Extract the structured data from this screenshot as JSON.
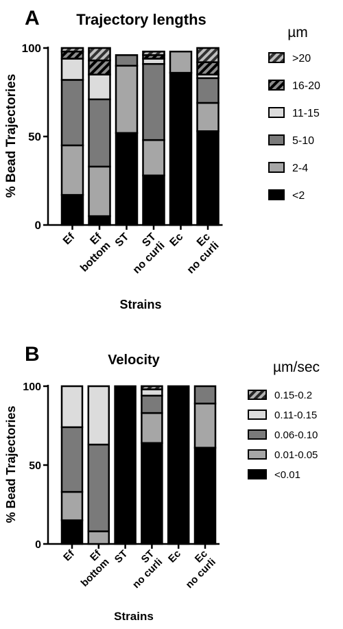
{
  "chart_data": [
    {
      "type": "bar",
      "stacked": true,
      "panel_letter": "A",
      "title": "Trajectory lengths",
      "xlabel": "Strains",
      "ylabel": "% Bead Trajectories",
      "ylim": [
        0,
        100
      ],
      "yticks": [
        0,
        50,
        100
      ],
      "categories": [
        [
          "Ef"
        ],
        [
          "Ef",
          "bottom"
        ],
        [
          "ST"
        ],
        [
          "ST",
          "no curli"
        ],
        [
          "Ec"
        ],
        [
          "Ec",
          "no curli"
        ]
      ],
      "legend_title": "µm",
      "legend_position": "right",
      "series": [
        {
          "name": "<2",
          "color": "#000000",
          "pattern": "solid",
          "values": [
            17,
            5,
            52,
            28,
            86,
            53
          ]
        },
        {
          "name": "2-4",
          "color": "#a6a6a6",
          "pattern": "solid",
          "values": [
            28,
            28,
            38,
            20,
            12,
            16
          ]
        },
        {
          "name": "5-10",
          "color": "#7a7a7a",
          "pattern": "solid",
          "values": [
            37,
            38,
            6,
            43,
            0,
            14
          ]
        },
        {
          "name": "11-15",
          "color": "#dcdcdc",
          "pattern": "solid",
          "values": [
            12,
            14,
            0,
            3,
            0,
            2
          ]
        },
        {
          "name": "16-20",
          "color": "#000000",
          "pattern": "hatch",
          "values": [
            4,
            8,
            0,
            2,
            0,
            7
          ]
        },
        {
          "name": ">20",
          "color": "#707070",
          "pattern": "hatch",
          "values": [
            2,
            7,
            0,
            2,
            0,
            8
          ]
        }
      ]
    },
    {
      "type": "bar",
      "stacked": true,
      "panel_letter": "B",
      "title": "Velocity",
      "xlabel": "Strains",
      "ylabel": "% Bead Trajectories",
      "ylim": [
        0,
        100
      ],
      "yticks": [
        0,
        50,
        100
      ],
      "categories": [
        [
          "Ef"
        ],
        [
          "Ef",
          "bottom"
        ],
        [
          "ST"
        ],
        [
          "ST",
          "no curli"
        ],
        [
          "Ec"
        ],
        [
          "Ec",
          "no curli"
        ]
      ],
      "legend_title": "µm/sec",
      "legend_position": "right",
      "series": [
        {
          "name": "<0.01",
          "color": "#000000",
          "pattern": "solid",
          "values": [
            15,
            0,
            100,
            64,
            100,
            61
          ]
        },
        {
          "name": "0.01-0.05",
          "color": "#a6a6a6",
          "pattern": "solid",
          "values": [
            18,
            8,
            0,
            19,
            0,
            28
          ]
        },
        {
          "name": "0.06-0.10",
          "color": "#7a7a7a",
          "pattern": "solid",
          "values": [
            41,
            55,
            0,
            11,
            0,
            11
          ]
        },
        {
          "name": "0.11-0.15",
          "color": "#dcdcdc",
          "pattern": "solid",
          "values": [
            26,
            37,
            0,
            4,
            0,
            0
          ]
        },
        {
          "name": "0.15-0.2",
          "color": "#555555",
          "pattern": "hatch",
          "values": [
            0,
            0,
            0,
            2,
            0,
            0
          ]
        }
      ]
    }
  ]
}
